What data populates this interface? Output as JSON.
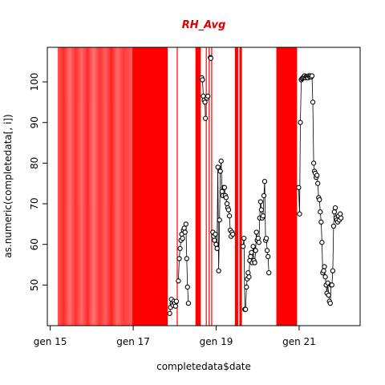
{
  "chart_data": {
    "type": "scatter",
    "title": "RH_Avg",
    "xlabel": "completedata$date",
    "ylabel": "as.numeric(completedata[, i])",
    "x_ticks": [
      {
        "x": 2015.0,
        "label": "gen 15"
      },
      {
        "x": 2017.0,
        "label": "gen 17"
      },
      {
        "x": 2019.0,
        "label": "gen 19"
      },
      {
        "x": 2021.0,
        "label": "gen 21"
      }
    ],
    "y_ticks": [
      50,
      60,
      70,
      80,
      90,
      100
    ],
    "xlim": [
      2014.93,
      2022.47
    ],
    "ylim": [
      40.0,
      108.5
    ],
    "colors": {
      "title": "#e00000",
      "bands": "#ff0000",
      "points": "#000000",
      "axes": "#000000"
    },
    "missing_bands": [
      {
        "start": 2015.18,
        "end": 2016.98,
        "gradient": true
      },
      {
        "start": 2016.98,
        "end": 2017.83
      },
      {
        "start": 2018.05,
        "end": 2018.07
      },
      {
        "start": 2018.5,
        "end": 2018.63
      },
      {
        "start": 2018.75,
        "end": 2018.77
      },
      {
        "start": 2018.82,
        "end": 2018.84
      },
      {
        "start": 2018.88,
        "end": 2018.9
      },
      {
        "start": 2019.45,
        "end": 2019.53
      },
      {
        "start": 2019.56,
        "end": 2019.62
      },
      {
        "start": 2020.45,
        "end": 2020.95
      }
    ],
    "series": [
      {
        "segments": [
          [
            [
              2017.88,
              43
            ],
            [
              2017.9,
              44.5
            ],
            [
              2017.92,
              46.5
            ],
            [
              2017.94,
              45.5
            ],
            [
              2017.96,
              45
            ],
            [
              2017.98,
              46
            ],
            [
              2018.0,
              45.5
            ],
            [
              2018.02,
              44.8
            ],
            [
              2018.04,
              46
            ]
          ],
          [
            [
              2018.09,
              51
            ],
            [
              2018.11,
              56.5
            ],
            [
              2018.13,
              59
            ],
            [
              2018.15,
              61
            ],
            [
              2018.17,
              62.5
            ],
            [
              2018.19,
              61.5
            ],
            [
              2018.21,
              63.5
            ],
            [
              2018.23,
              64
            ],
            [
              2018.25,
              63
            ],
            [
              2018.27,
              65
            ],
            [
              2018.29,
              56.5
            ],
            [
              2018.31,
              49.5
            ],
            [
              2018.33,
              45.5
            ]
          ],
          [
            [
              2018.65,
              101
            ],
            [
              2018.67,
              100.5
            ],
            [
              2018.69,
              96.5
            ],
            [
              2018.71,
              95.5
            ],
            [
              2018.73,
              95
            ],
            [
              2018.74,
              91
            ]
          ],
          [
            [
              2018.78,
              96
            ],
            [
              2018.8,
              96.5
            ]
          ],
          [
            [
              2018.86,
              106
            ],
            [
              2018.87,
              105.8
            ]
          ],
          [
            [
              2018.92,
              63
            ],
            [
              2018.94,
              62
            ],
            [
              2018.96,
              61
            ],
            [
              2018.98,
              62.5
            ],
            [
              2019.0,
              60
            ],
            [
              2019.02,
              59
            ],
            [
              2019.04,
              79
            ],
            [
              2019.06,
              53.5
            ],
            [
              2019.08,
              66
            ],
            [
              2019.1,
              78
            ],
            [
              2019.12,
              80.5
            ],
            [
              2019.14,
              73
            ],
            [
              2019.16,
              72
            ],
            [
              2019.18,
              74
            ],
            [
              2019.2,
              74
            ],
            [
              2019.22,
              72
            ],
            [
              2019.24,
              71.5
            ],
            [
              2019.26,
              70
            ],
            [
              2019.28,
              69
            ],
            [
              2019.3,
              68.5
            ],
            [
              2019.32,
              67
            ],
            [
              2019.34,
              63.5
            ],
            [
              2019.36,
              62
            ],
            [
              2019.38,
              63
            ],
            [
              2019.4,
              62.5
            ]
          ],
          [
            [
              2019.65,
              59.5
            ],
            [
              2019.67,
              61.5
            ],
            [
              2019.69,
              44
            ],
            [
              2019.71,
              44
            ],
            [
              2019.73,
              49.5
            ],
            [
              2019.75,
              51.5
            ],
            [
              2019.77,
              53
            ],
            [
              2019.79,
              52
            ],
            [
              2019.81,
              56
            ],
            [
              2019.83,
              57
            ],
            [
              2019.85,
              58
            ],
            [
              2019.87,
              55.5
            ],
            [
              2019.89,
              59.5
            ],
            [
              2019.91,
              56
            ],
            [
              2019.93,
              55.5
            ],
            [
              2019.95,
              58.5
            ],
            [
              2019.97,
              63
            ],
            [
              2019.99,
              61
            ],
            [
              2020.01,
              61.5
            ],
            [
              2020.03,
              60.5
            ],
            [
              2020.05,
              66.5
            ],
            [
              2020.07,
              70.5
            ],
            [
              2020.09,
              68.5
            ],
            [
              2020.11,
              66.5
            ],
            [
              2020.13,
              67
            ],
            [
              2020.15,
              72
            ],
            [
              2020.17,
              75.5
            ],
            [
              2020.19,
              61
            ],
            [
              2020.21,
              61.5
            ],
            [
              2020.23,
              58.5
            ],
            [
              2020.25,
              57
            ],
            [
              2020.27,
              53
            ]
          ],
          [
            [
              2020.99,
              74
            ],
            [
              2021.01,
              67.5
            ],
            [
              2021.03,
              90
            ],
            [
              2021.05,
              100.5
            ],
            [
              2021.07,
              100.8
            ],
            [
              2021.09,
              101
            ],
            [
              2021.11,
              101.2
            ],
            [
              2021.13,
              101.5
            ],
            [
              2021.15,
              101
            ],
            [
              2021.17,
              101.3
            ],
            [
              2021.19,
              101.2
            ],
            [
              2021.21,
              101
            ],
            [
              2021.23,
              101.5
            ],
            [
              2021.25,
              101.3
            ],
            [
              2021.27,
              101.5
            ],
            [
              2021.29,
              101.2
            ],
            [
              2021.31,
              101.5
            ],
            [
              2021.33,
              95
            ],
            [
              2021.35,
              80
            ],
            [
              2021.37,
              78
            ],
            [
              2021.39,
              77.5
            ],
            [
              2021.41,
              76.5
            ],
            [
              2021.43,
              77
            ],
            [
              2021.45,
              75
            ],
            [
              2021.47,
              71.5
            ],
            [
              2021.49,
              71
            ],
            [
              2021.51,
              68
            ],
            [
              2021.53,
              65.5
            ],
            [
              2021.55,
              60.5
            ],
            [
              2021.57,
              53
            ],
            [
              2021.59,
              53.5
            ],
            [
              2021.61,
              54.5
            ],
            [
              2021.63,
              52
            ],
            [
              2021.65,
              50
            ],
            [
              2021.67,
              48
            ],
            [
              2021.69,
              50.5
            ],
            [
              2021.71,
              47.5
            ],
            [
              2021.73,
              46
            ],
            [
              2021.75,
              45.5
            ],
            [
              2021.77,
              50
            ],
            [
              2021.79,
              50
            ],
            [
              2021.81,
              53.5
            ],
            [
              2021.83,
              64.5
            ],
            [
              2021.85,
              68
            ],
            [
              2021.87,
              69
            ],
            [
              2021.89,
              66.5
            ],
            [
              2021.91,
              66
            ],
            [
              2021.93,
              65.5
            ],
            [
              2021.95,
              67
            ],
            [
              2021.97,
              66
            ],
            [
              2021.99,
              67.5
            ],
            [
              2022.01,
              66.5
            ]
          ]
        ]
      }
    ]
  }
}
